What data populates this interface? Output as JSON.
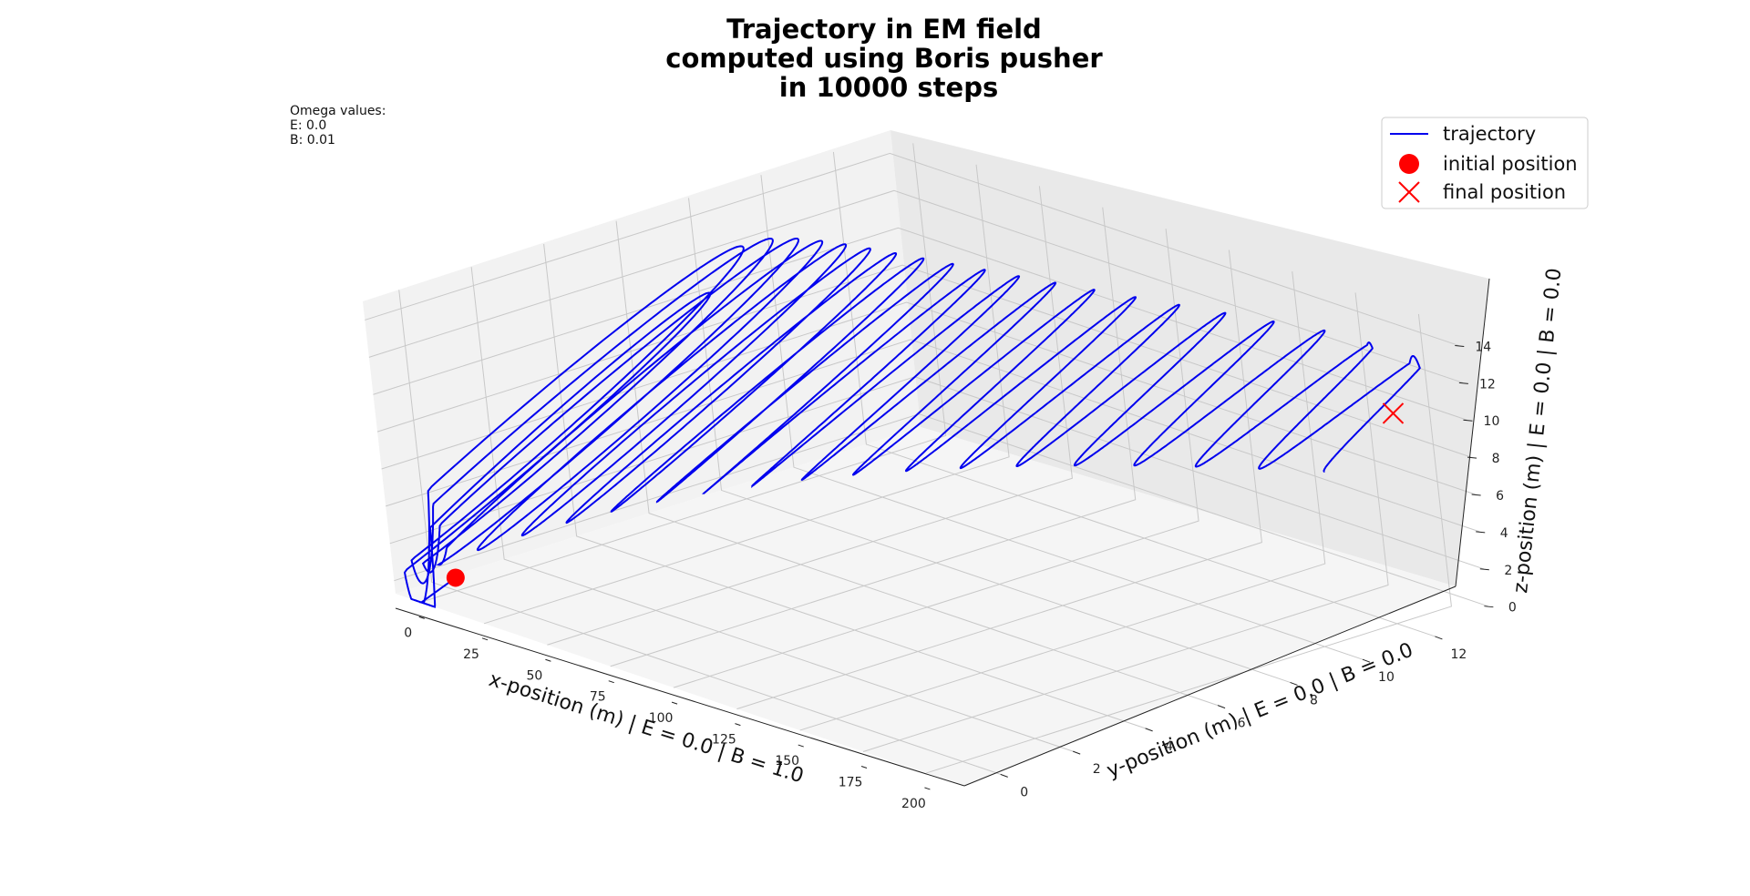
{
  "chart_data": {
    "type": "line3d",
    "title": [
      "Trajectory in EM field",
      "computed using Boris pusher",
      "in 10000 steps"
    ],
    "annotation": {
      "heading": "Omega values:",
      "lines": [
        "E: 0.0",
        "B: 0.01"
      ]
    },
    "xlabel": "x-position (m) | E = 0.0 | B = 1.0",
    "ylabel": "y-position (m) | E = 0.0 | B = 0.0",
    "zlabel": "z-position (m) | E = 0.0 | B = 0.0",
    "xlim": [
      -10,
      215
    ],
    "ylim": [
      -1,
      13.5
    ],
    "zlim": [
      -0.7,
      15
    ],
    "xticks": [
      0,
      25,
      50,
      75,
      100,
      125,
      150,
      175,
      200
    ],
    "yticks": [
      0,
      2,
      4,
      6,
      8,
      10,
      12
    ],
    "zticks": [
      0,
      2,
      4,
      6,
      8,
      10,
      12,
      14
    ],
    "grid": true,
    "legend_position": "top-right",
    "legend": [
      {
        "label": "trajectory",
        "marker": "line",
        "color": "#0000ee"
      },
      {
        "label": "initial position",
        "marker": "circle",
        "color": "#ff0000"
      },
      {
        "label": "final position",
        "marker": "x",
        "color": "#ff0000"
      }
    ],
    "series": [
      {
        "name": "trajectory",
        "color": "#0000ee",
        "description_of_shape": "helix along +x; pitch grows from zero; radius decays",
        "x_start": 0,
        "x_end": 205,
        "loops": 21,
        "first_loop_radius_yz": 7,
        "last_loop_radius_yz": 2
      }
    ],
    "initial_position": {
      "x": 0,
      "y": 0,
      "z": 0,
      "color": "#ff0000"
    },
    "final_position": {
      "x": 205,
      "y": 12.2,
      "z": 10.7,
      "color": "#ff0000"
    }
  }
}
